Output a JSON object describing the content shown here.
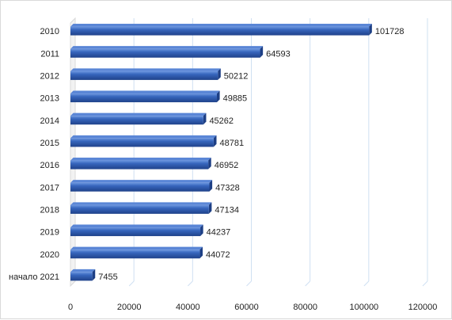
{
  "chart_data": {
    "type": "bar",
    "orientation": "horizontal",
    "categories": [
      "2010",
      "2011",
      "2012",
      "2013",
      "2014",
      "2015",
      "2016",
      "2017",
      "2018",
      "2019",
      "2020",
      "начало 2021"
    ],
    "values": [
      101728,
      64593,
      50212,
      49885,
      45262,
      48781,
      46952,
      47328,
      47134,
      44237,
      44072,
      7455
    ],
    "data_labels": [
      "101728",
      "64593",
      "50212",
      "49885",
      "45262",
      "48781",
      "46952",
      "47328",
      "47134",
      "44237",
      "44072",
      "7455"
    ],
    "xlim": [
      0,
      120000
    ],
    "x_ticks": [
      0,
      20000,
      40000,
      60000,
      80000,
      100000,
      120000
    ],
    "x_tick_labels": [
      "0",
      "20000",
      "40000",
      "60000",
      "80000",
      "100000",
      "120000"
    ],
    "title": "",
    "xlabel": "",
    "ylabel": "",
    "grid": "vertical",
    "legend": "none",
    "colors": {
      "bar_front": "#3461b8",
      "bar_light": "#5a86d6",
      "bar_dark": "#1d3f85",
      "grid": "#cfe0f2",
      "label": "#1f1f1f"
    }
  }
}
